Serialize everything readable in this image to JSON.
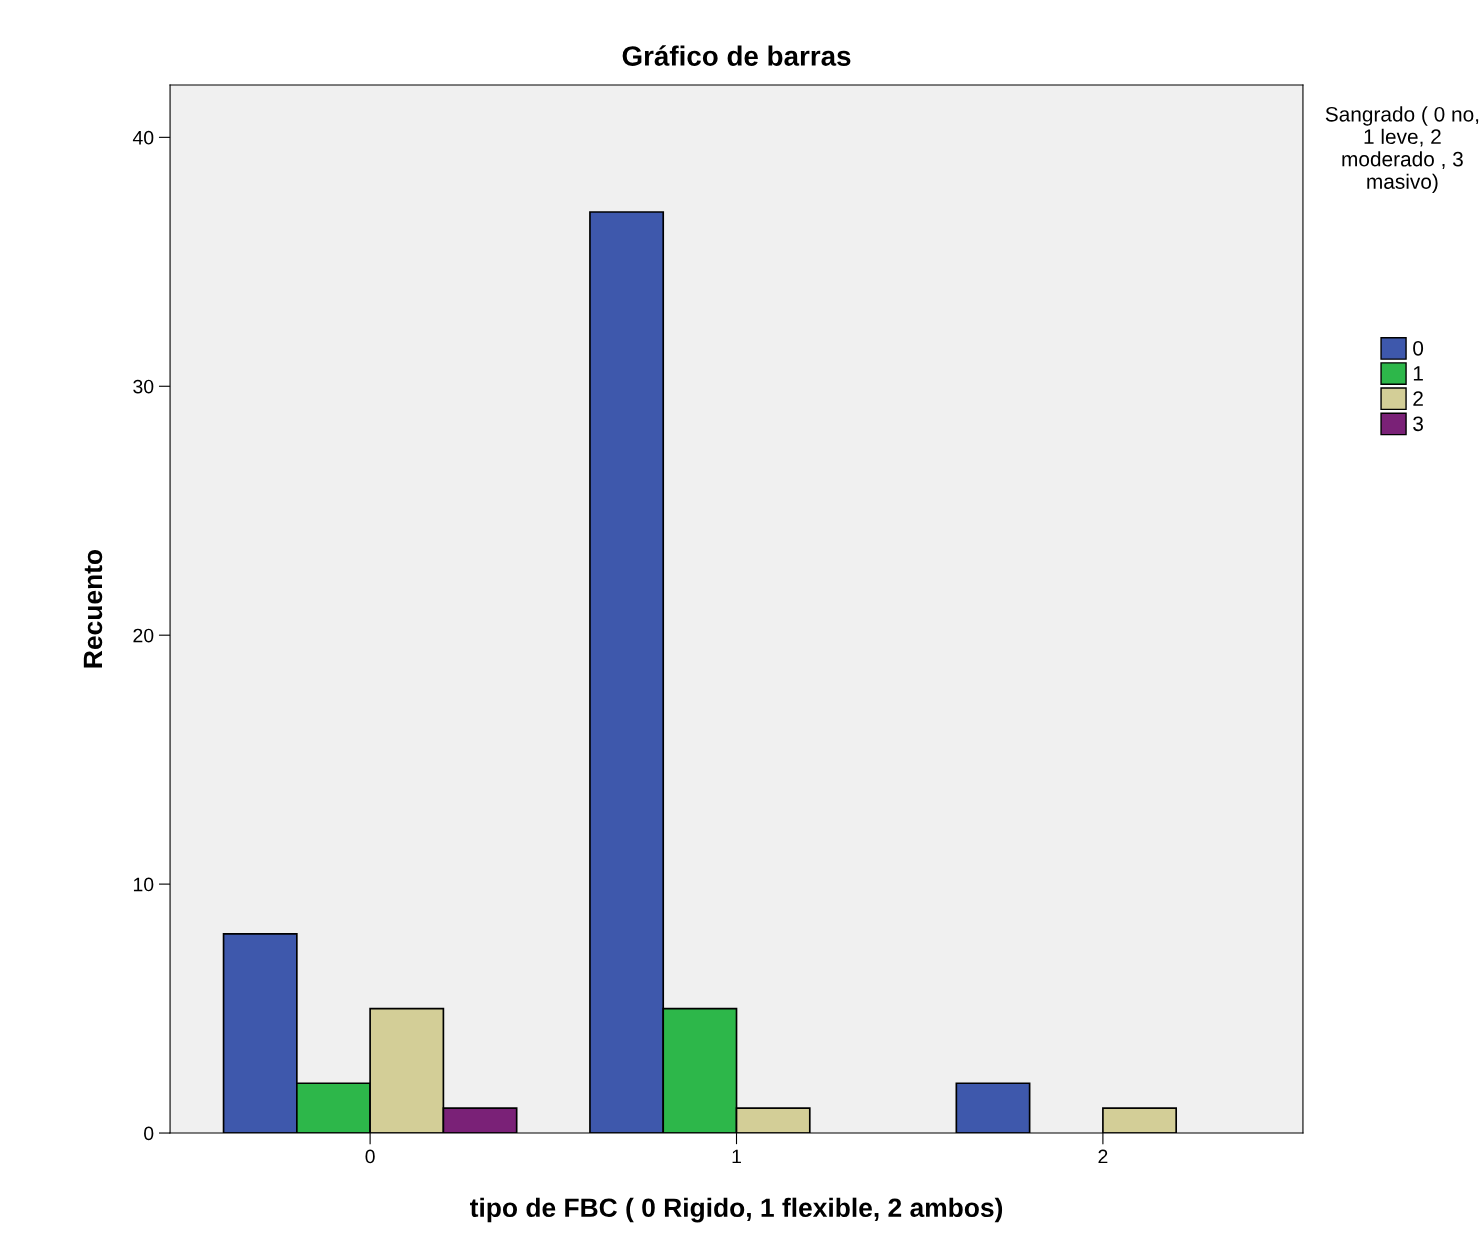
{
  "chart_data": {
    "type": "bar",
    "title": "Gráfico de barras",
    "xlabel": "tipo de FBC ( 0 Rigido, 1 flexible, 2 ambos)",
    "ylabel": "Recuento",
    "legend_title": "Sangrado ( 0 no, 1 leve, 2 moderado , 3 masivo)",
    "categories": [
      "0",
      "1",
      "2"
    ],
    "series": [
      {
        "name": "0",
        "color": "#3e58ac",
        "values": [
          8,
          37,
          2
        ]
      },
      {
        "name": "1",
        "color": "#2db74a",
        "values": [
          2,
          5,
          null
        ]
      },
      {
        "name": "2",
        "color": "#d3ce97",
        "values": [
          5,
          1,
          1
        ]
      },
      {
        "name": "3",
        "color": "#7a2177",
        "values": [
          1,
          null,
          null
        ]
      }
    ],
    "ylim": [
      0,
      42.1
    ],
    "yticks": [
      0,
      10,
      20,
      30,
      40
    ],
    "grid": false,
    "legend": "right"
  }
}
